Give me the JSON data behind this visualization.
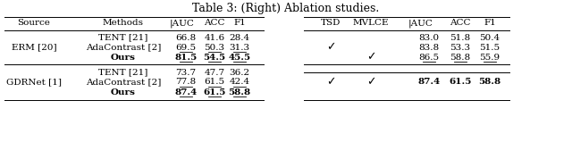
{
  "title": "Table 3: (Right) Ablation studies.",
  "left_headers": [
    "Source",
    "Methods",
    "AUC",
    "ACC",
    "F1"
  ],
  "left_rows": [
    {
      "source": "ERM [20]",
      "methods": [
        "TENT [21]",
        "AdaContrast [2]",
        "Ours"
      ],
      "values": [
        [
          "66.8",
          "41.6",
          "28.4"
        ],
        [
          "69.5",
          "50.3",
          "31.3"
        ],
        [
          "81.5",
          "54.5",
          "45.5"
        ]
      ],
      "bold": [
        false,
        false,
        true
      ],
      "underline": [
        false,
        true,
        true
      ]
    },
    {
      "source": "GDRNet [1]",
      "methods": [
        "TENT [21]",
        "AdaContrast [2]",
        "Ours"
      ],
      "values": [
        [
          "73.7",
          "47.7",
          "36.2"
        ],
        [
          "77.8",
          "61.5",
          "42.4"
        ],
        [
          "87.4",
          "61.5",
          "58.8"
        ]
      ],
      "bold": [
        false,
        false,
        true
      ],
      "underline": [
        false,
        true,
        true
      ]
    }
  ],
  "right_headers": [
    "TSD",
    "MVLCE",
    "AUC",
    "ACC",
    "F1"
  ],
  "right_rows": [
    {
      "tsd": "",
      "mvlce": "",
      "values": [
        "83.0",
        "51.8",
        "50.4"
      ],
      "bold": false,
      "underline": false
    },
    {
      "tsd": "✓",
      "mvlce": "",
      "values": [
        "83.8",
        "53.3",
        "51.5"
      ],
      "bold": false,
      "underline": false
    },
    {
      "tsd": "",
      "mvlce": "✓",
      "values": [
        "86.5",
        "58.8",
        "55.9"
      ],
      "bold": false,
      "underline": true
    },
    {
      "tsd": "✓",
      "mvlce": "✓",
      "values": [
        "87.4",
        "61.5",
        "58.8"
      ],
      "bold": true,
      "underline": false
    }
  ],
  "bg_color": "#ffffff"
}
